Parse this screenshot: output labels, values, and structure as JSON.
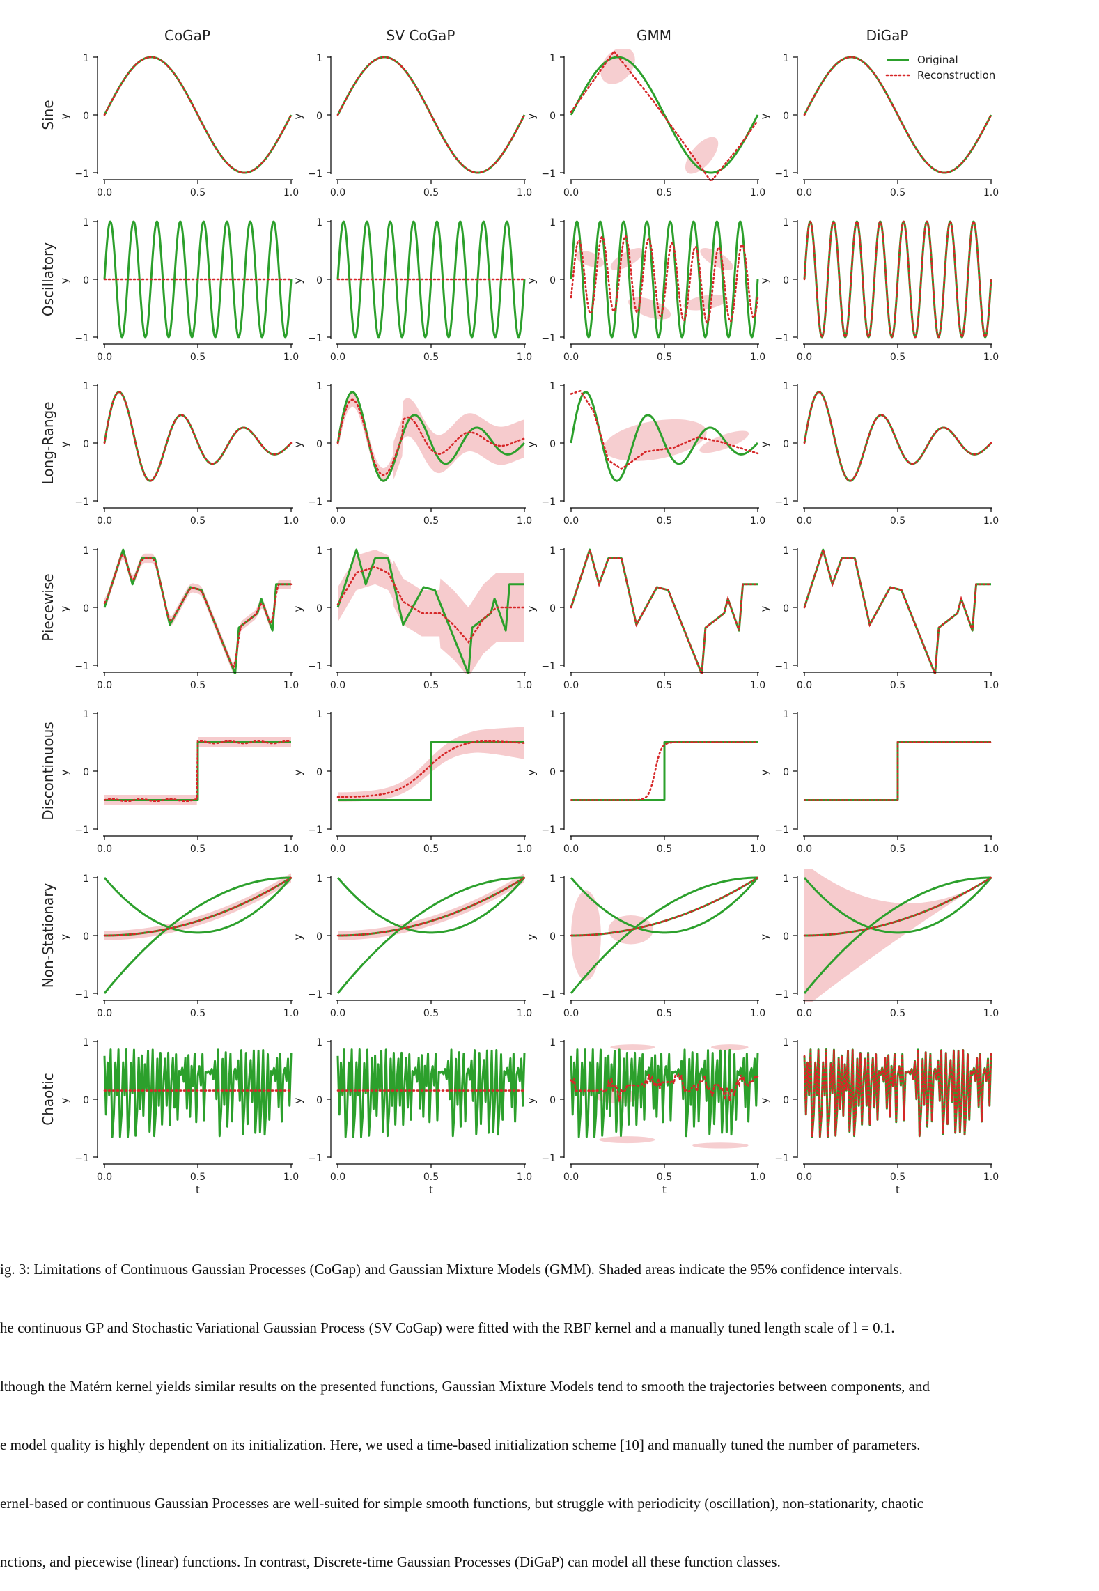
{
  "figure": {
    "columns": [
      "CoGaP",
      "SV CoGaP",
      "GMM",
      "DiGaP"
    ],
    "rows": [
      "Sine",
      "Oscillatory",
      "Long-Range",
      "Piecewise",
      "Discontinuous",
      "Non-Stationary",
      "Chaotic"
    ],
    "legend": {
      "original": "Original",
      "reconstruction": "Reconstruction",
      "placement": "top-right of Sine / DiGaP panel"
    },
    "colors": {
      "original": "#2ca02c",
      "reconstruction": "#d62728",
      "confidence": "#f4c2c4"
    }
  },
  "chart_data": {
    "type": "line",
    "grid": false,
    "xlabel": "t",
    "ylabel": "y",
    "xlim": [
      0,
      1
    ],
    "ylim": [
      -1,
      1
    ],
    "xticks": [
      "0.0",
      "0.5",
      "1.0"
    ],
    "yticks": [
      "1",
      "0",
      "−1"
    ],
    "series": [
      {
        "name": "Original"
      },
      {
        "name": "Reconstruction"
      }
    ],
    "notes_per_row": {
      "Sine": "y = sin(2πt); CoGaP, SV CoGaP, DiGaP reconstruct exactly; GMM piecewise approximation",
      "Oscillatory": "y = sin(16πt); CoGaP and SV CoGaP reconstruct a flat line at 0",
      "Long-Range": "damped oscillation, peak ≈0.85 at t≈0.08",
      "Piecewise": "piecewise linear with vertices (0,0),(0.1,1),(0.15,0.4),(0.2,0.85),(0.27,0.85),(0.35,-0.3),(0.46,0.35),(0.52,0.3),(0.7,-1.15),(0.72,-0.35),(0.82,-0.1),(0.84,0.15),(0.9,-0.4),(0.92,0.4),(1,0.4)",
      "Discontinuous": "step from -0.5 to 0.5 at t=0.5",
      "Non-Stationary": "three curves converging at (1,1): from 1, from 0, from -1",
      "Chaotic": "chaotic signal between -0.8 and 0.9; CoGaP and SV CoGaP reconstruct a flat line at about 0.15"
    }
  },
  "caption": {
    "lines": [
      "ig. 3: Limitations of Continuous Gaussian Processes (CoGap) and Gaussian Mixture Models (GMM). Shaded areas indicate the 95% confidence intervals.",
      "he continuous GP and Stochastic Variational Gaussian Process (SV CoGap) were fitted with the RBF kernel and a manually tuned length scale of l = 0.1.",
      "lthough the Matérn kernel yields similar results on the presented functions, Gaussian Mixture Models tend to smooth the trajectories between components, and",
      "e model quality is highly dependent on its initialization. Here, we used a time-based initialization scheme [10] and manually tuned the number of parameters.",
      "ernel-based or continuous Gaussian Processes are well-suited for simple smooth functions, but struggle with periodicity (oscillation), non-stationarity, chaotic",
      "nctions, and piecewise (linear) functions. In contrast, Discrete-time Gaussian Processes (DiGaP) can model all these function classes."
    ]
  }
}
